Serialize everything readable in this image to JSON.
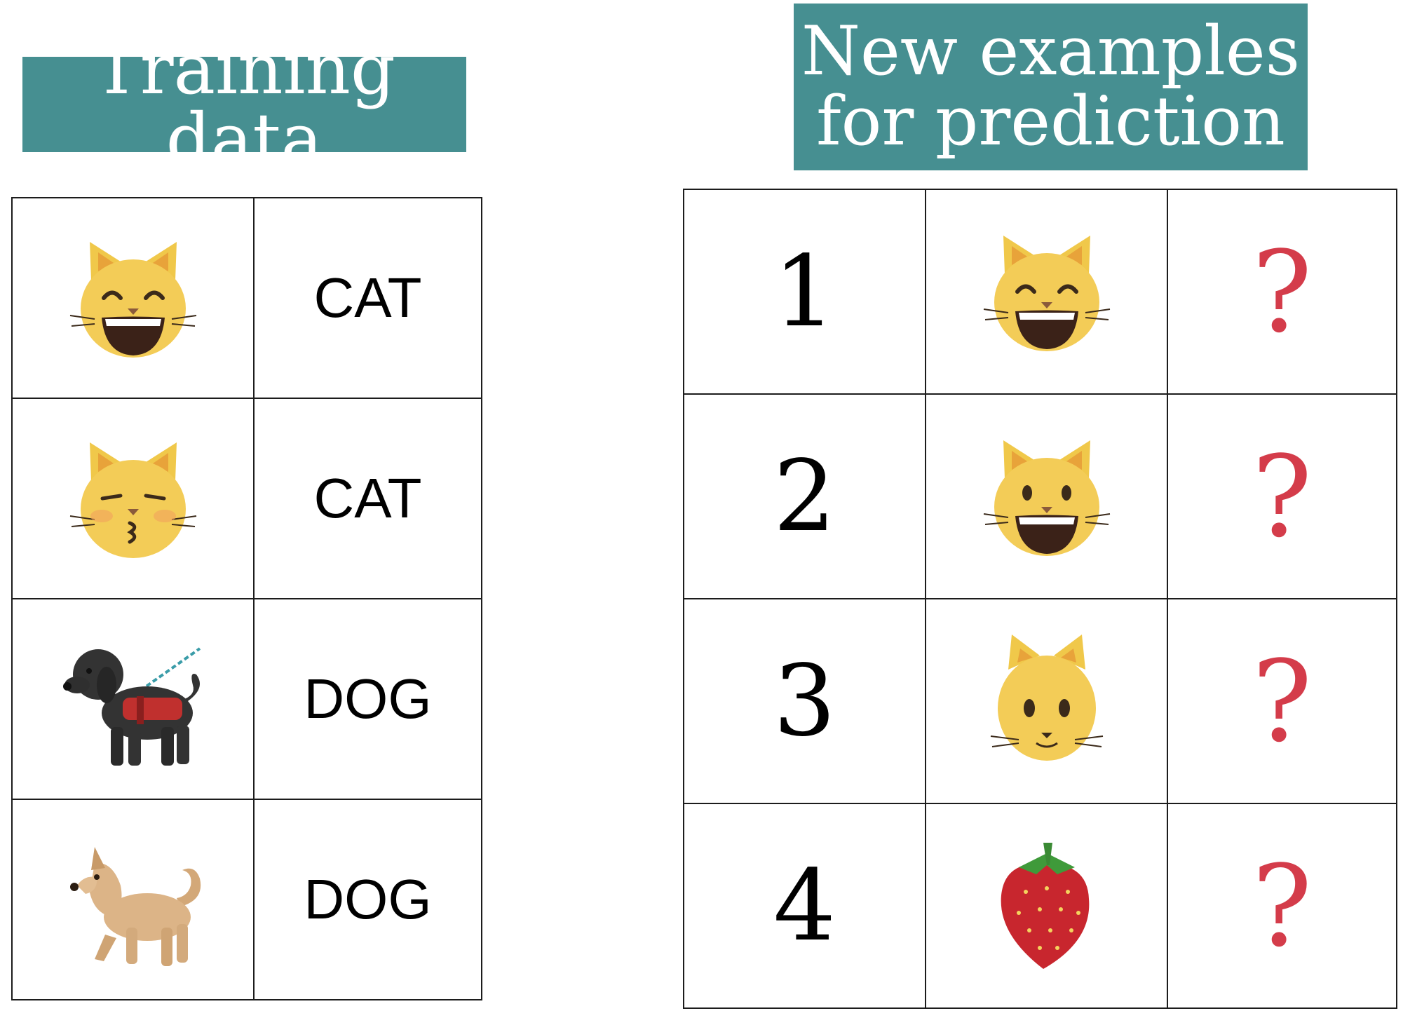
{
  "training": {
    "title": "Training data",
    "rows": [
      {
        "icon": "grinning-cat-icon",
        "label": "CAT"
      },
      {
        "icon": "kissing-cat-icon",
        "label": "CAT"
      },
      {
        "icon": "service-dog-icon",
        "label": "DOG"
      },
      {
        "icon": "dog-icon",
        "label": "DOG"
      }
    ]
  },
  "prediction": {
    "title": "New examples\nfor prediction",
    "rows": [
      {
        "number": "1",
        "icon": "grinning-cat-smiling-eyes-icon",
        "result": "?"
      },
      {
        "number": "2",
        "icon": "grinning-cat-icon",
        "result": "?"
      },
      {
        "number": "3",
        "icon": "cat-face-icon",
        "result": "?"
      },
      {
        "number": "4",
        "icon": "strawberry-icon",
        "result": "?"
      }
    ]
  },
  "colors": {
    "title_background": "#468f91",
    "title_text": "#ffffff",
    "question_mark": "#d43c4a",
    "grid_line": "#1c1c1c"
  }
}
